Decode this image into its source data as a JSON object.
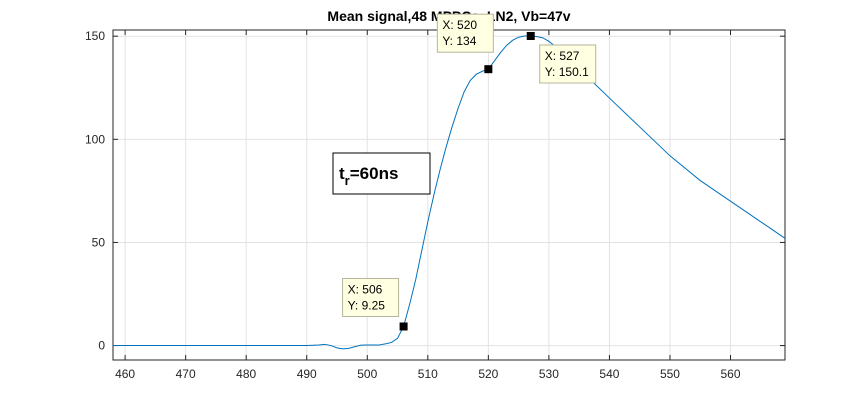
{
  "chart_data": {
    "type": "line",
    "title": "Mean signal,48 MPPCs, LN2, Vb=47v",
    "xlim": [
      458,
      569
    ],
    "ylim": [
      -7,
      153
    ],
    "grid": true,
    "x_ticks": [
      460,
      470,
      480,
      490,
      500,
      510,
      520,
      530,
      540,
      550,
      560
    ],
    "y_ticks": [
      0,
      50,
      100,
      150
    ],
    "line_color": "#0072bd",
    "series": [
      {
        "x": [
          458,
          470,
          480,
          490,
          492,
          493,
          494,
          495,
          496,
          497,
          498,
          499,
          500,
          501,
          502,
          503,
          504,
          505,
          506,
          507,
          508,
          509,
          510,
          511,
          512,
          513,
          514,
          515,
          516,
          517,
          518,
          519,
          520,
          521,
          522,
          523,
          524,
          525,
          526,
          527,
          528,
          529,
          530,
          531,
          532,
          533,
          535,
          537,
          540,
          545,
          550,
          555,
          560,
          565,
          569
        ],
        "y": [
          0,
          0,
          0,
          0,
          0.3,
          0.6,
          0,
          -1.1,
          -1.6,
          -1.3,
          -0.5,
          0.2,
          0.3,
          0.3,
          0.3,
          0.8,
          1.5,
          3.5,
          9.25,
          20,
          32,
          46,
          60,
          73,
          85,
          96,
          106,
          115,
          123,
          128.5,
          131.5,
          133,
          134,
          138,
          142,
          145.5,
          148,
          149.5,
          150.1,
          150.1,
          149.8,
          149.2,
          147.5,
          145.2,
          143,
          140.5,
          134.5,
          128.5,
          120,
          106,
          92,
          80,
          70,
          60,
          52
        ]
      }
    ],
    "datatips": [
      {
        "x": 506,
        "y": 9.25,
        "x_text": "X: 506",
        "y_text": "Y: 9.25"
      },
      {
        "x": 520,
        "y": 134,
        "x_text": "X: 520",
        "y_text": "Y: 134"
      },
      {
        "x": 527,
        "y": 150.1,
        "x_text": "X: 527",
        "y_text": "Y: 150.1"
      }
    ],
    "annotation": {
      "main": "t",
      "sub": "r",
      "rest": "=60ns"
    }
  }
}
